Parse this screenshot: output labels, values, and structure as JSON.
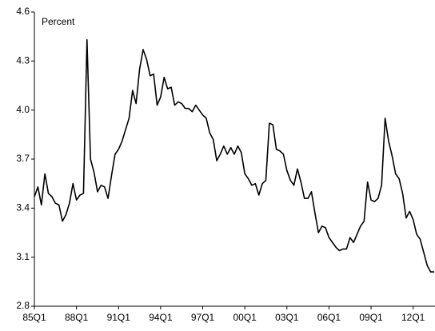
{
  "chart_data": {
    "type": "line",
    "y_label": "Percent",
    "categories": [
      "85Q1",
      null,
      null,
      null,
      null,
      null,
      null,
      null,
      null,
      null,
      null,
      null,
      "88Q1",
      null,
      null,
      null,
      null,
      null,
      null,
      null,
      null,
      null,
      null,
      null,
      "91Q1",
      null,
      null,
      null,
      null,
      null,
      null,
      null,
      null,
      null,
      null,
      null,
      "94Q1",
      null,
      null,
      null,
      null,
      null,
      null,
      null,
      null,
      null,
      null,
      null,
      "97Q1",
      null,
      null,
      null,
      null,
      null,
      null,
      null,
      null,
      null,
      null,
      null,
      "00Q1",
      null,
      null,
      null,
      null,
      null,
      null,
      null,
      null,
      null,
      null,
      null,
      "03Q1",
      null,
      null,
      null,
      null,
      null,
      null,
      null,
      null,
      null,
      null,
      null,
      "06Q1",
      null,
      null,
      null,
      null,
      null,
      null,
      null,
      null,
      null,
      null,
      null,
      "09Q1",
      null,
      null,
      null,
      null,
      null,
      null,
      null,
      null,
      null,
      null,
      null,
      "12Q1",
      null,
      null,
      null,
      null,
      null,
      null
    ],
    "series": [
      {
        "color": "#000000",
        "values": [
          3.47,
          3.53,
          3.42,
          3.61,
          3.49,
          3.47,
          3.43,
          3.42,
          3.32,
          3.36,
          3.43,
          3.55,
          3.45,
          3.48,
          3.49,
          4.43,
          3.7,
          3.62,
          3.5,
          3.54,
          3.53,
          3.46,
          3.6,
          3.73,
          3.76,
          3.81,
          3.88,
          3.95,
          4.12,
          4.04,
          4.25,
          4.37,
          4.31,
          4.21,
          4.22,
          4.03,
          4.08,
          4.2,
          4.13,
          4.14,
          4.03,
          4.05,
          4.04,
          4.01,
          4.01,
          3.99,
          4.03,
          4.0,
          3.97,
          3.95,
          3.86,
          3.82,
          3.69,
          3.73,
          3.78,
          3.73,
          3.77,
          3.73,
          3.78,
          3.74,
          3.61,
          3.58,
          3.54,
          3.55,
          3.48,
          3.55,
          3.57,
          3.92,
          3.91,
          3.76,
          3.75,
          3.73,
          3.63,
          3.57,
          3.54,
          3.64,
          3.56,
          3.46,
          3.46,
          3.5,
          3.37,
          3.25,
          3.29,
          3.28,
          3.22,
          3.19,
          3.16,
          3.14,
          3.15,
          3.15,
          3.22,
          3.19,
          3.24,
          3.29,
          3.32,
          3.56,
          3.45,
          3.44,
          3.46,
          3.54,
          3.95,
          3.81,
          3.72,
          3.61,
          3.58,
          3.49,
          3.34,
          3.38,
          3.33,
          3.24,
          3.21,
          3.13,
          3.05,
          3.01,
          3.01
        ]
      }
    ],
    "ylim": [
      2.8,
      4.6
    ],
    "yticks": [
      2.8,
      3.1,
      3.4,
      3.7,
      {
        "value": 4,
        "label": "4.0"
      },
      4.3,
      4.6
    ]
  }
}
